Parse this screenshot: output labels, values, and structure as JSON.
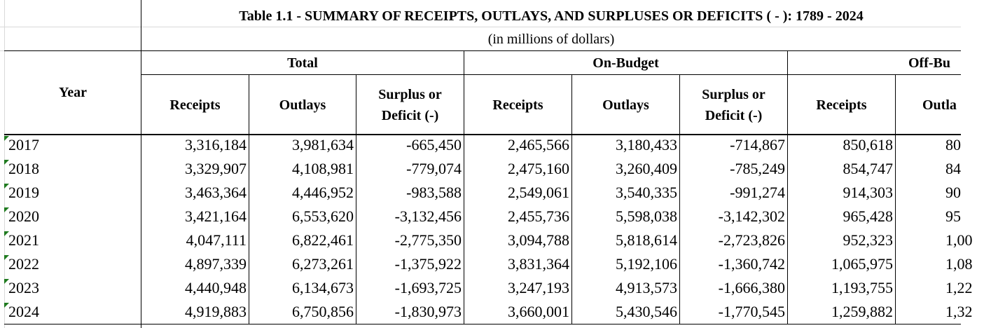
{
  "table": {
    "title": "Table 1.1 - SUMMARY OF RECEIPTS, OUTLAYS, AND SURPLUSES OR DEFICITS ( - ):  1789 - 2024",
    "subtitle": "(in millions of dollars)",
    "year_header": "Year",
    "groups": [
      "Total",
      "On-Budget",
      "Off-Bu"
    ],
    "columns": [
      "Receipts",
      "Outlays",
      "Surplus or Deficit (-)",
      "Receipts",
      "Outlays",
      "Surplus or Deficit (-)",
      "Receipts",
      "Outla"
    ],
    "rows": [
      {
        "year": "2017",
        "cells": [
          "3,316,184",
          "3,981,634",
          "-665,450",
          "2,465,566",
          "3,180,433",
          "-714,867",
          "850,618",
          "80"
        ]
      },
      {
        "year": "2018",
        "cells": [
          "3,329,907",
          "4,108,981",
          "-779,074",
          "2,475,160",
          "3,260,409",
          "-785,249",
          "854,747",
          "84"
        ]
      },
      {
        "year": "2019",
        "cells": [
          "3,463,364",
          "4,446,952",
          "-983,588",
          "2,549,061",
          "3,540,335",
          "-991,274",
          "914,303",
          "90"
        ]
      },
      {
        "year": "2020",
        "cells": [
          "3,421,164",
          "6,553,620",
          "-3,132,456",
          "2,455,736",
          "5,598,038",
          "-3,142,302",
          "965,428",
          "95"
        ]
      },
      {
        "year": "2021",
        "cells": [
          "4,047,111",
          "6,822,461",
          "-2,775,350",
          "3,094,788",
          "5,818,614",
          "-2,723,826",
          "952,323",
          "1,00"
        ]
      },
      {
        "year": "2022",
        "cells": [
          "4,897,339",
          "6,273,261",
          "-1,375,922",
          "3,831,364",
          "5,192,106",
          "-1,360,742",
          "1,065,975",
          "1,08"
        ]
      },
      {
        "year": "2023",
        "cells": [
          "4,440,948",
          "6,134,673",
          "-1,693,725",
          "3,247,193",
          "4,913,573",
          "-1,666,380",
          "1,193,755",
          "1,22"
        ]
      },
      {
        "year": "2024",
        "cells": [
          "4,919,883",
          "6,750,856",
          "-1,830,973",
          "3,660,001",
          "5,430,546",
          "-1,770,545",
          "1,259,882",
          "1,32"
        ]
      }
    ]
  },
  "colors": {
    "indicator": "#1f7a1f",
    "gridline": "#d9d9d9",
    "border": "#000000"
  }
}
